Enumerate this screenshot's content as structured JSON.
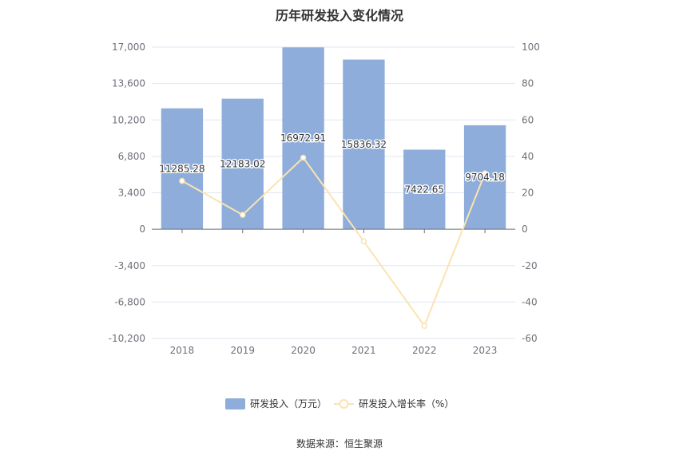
{
  "chart_data": {
    "type": "bar",
    "title": "历年研发投入变化情况",
    "source": "数据来源：恒生聚源",
    "categories": [
      "2018",
      "2019",
      "2020",
      "2021",
      "2022",
      "2023"
    ],
    "series": [
      {
        "name": "研发投入（万元）",
        "type": "bar",
        "axis": "left",
        "color": "#8eaddb",
        "values": [
          11285.28,
          12183.02,
          16972.91,
          15836.32,
          7422.65,
          9704.18
        ],
        "labels": [
          "11285.28",
          "12183.02",
          "16972.91",
          "15836.32",
          "7422.65",
          "9704.18"
        ]
      },
      {
        "name": "研发投入增长率（%）",
        "type": "line",
        "axis": "right",
        "color": "#fbe3b1",
        "values": [
          26.5,
          7.9,
          39.3,
          -6.7,
          -53.1,
          30.7
        ]
      }
    ],
    "y_left": {
      "min": -10200,
      "max": 17000,
      "ticks": [
        17000,
        13600,
        10200,
        6800,
        3400,
        0,
        -3400,
        -6800,
        -10200
      ],
      "tick_labels": [
        "17,000",
        "13,600",
        "10,200",
        "6,800",
        "3,400",
        "0",
        "-3,400",
        "-6,800",
        "-10,200"
      ]
    },
    "y_right": {
      "min": -60,
      "max": 100,
      "ticks": [
        100,
        80,
        60,
        40,
        20,
        0,
        -20,
        -40,
        -60
      ],
      "tick_labels": [
        "100",
        "80",
        "60",
        "40",
        "20",
        "0",
        "-20",
        "-40",
        "-60"
      ]
    },
    "grid": true,
    "legend_position": "bottom-center"
  }
}
